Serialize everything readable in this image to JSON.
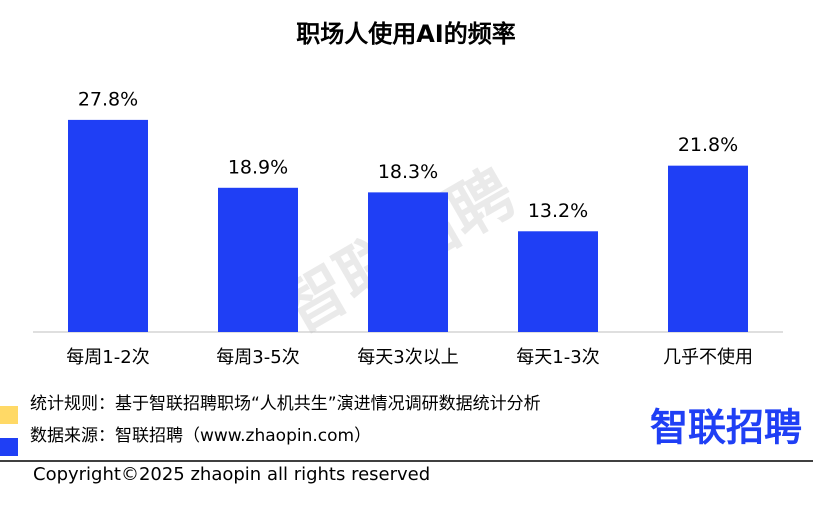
{
  "chart_data": {
    "type": "bar",
    "title": "职场人使用AI的频率",
    "categories": [
      "每周1-2次",
      "每周3-5次",
      "每天3次以上",
      "每天1-3次",
      "几乎不使用"
    ],
    "values": [
      27.8,
      18.9,
      18.3,
      13.2,
      21.8
    ],
    "value_labels": [
      "27.8%",
      "18.9%",
      "18.3%",
      "13.2%",
      "21.8%"
    ],
    "color": "#1f3ff5"
  },
  "notes": [
    {
      "text": "统计规则：基于智联招聘职场“人机共生”演进情况调研数据统计分析",
      "color": "#ffd966"
    },
    {
      "text": "数据来源：智联招聘（www.zhaopin.com）",
      "color": "#1f3ff5"
    }
  ],
  "logo": "智联招聘",
  "watermark": "智联招聘",
  "copyright": "Copyright©2025 zhaopin all rights reserved"
}
